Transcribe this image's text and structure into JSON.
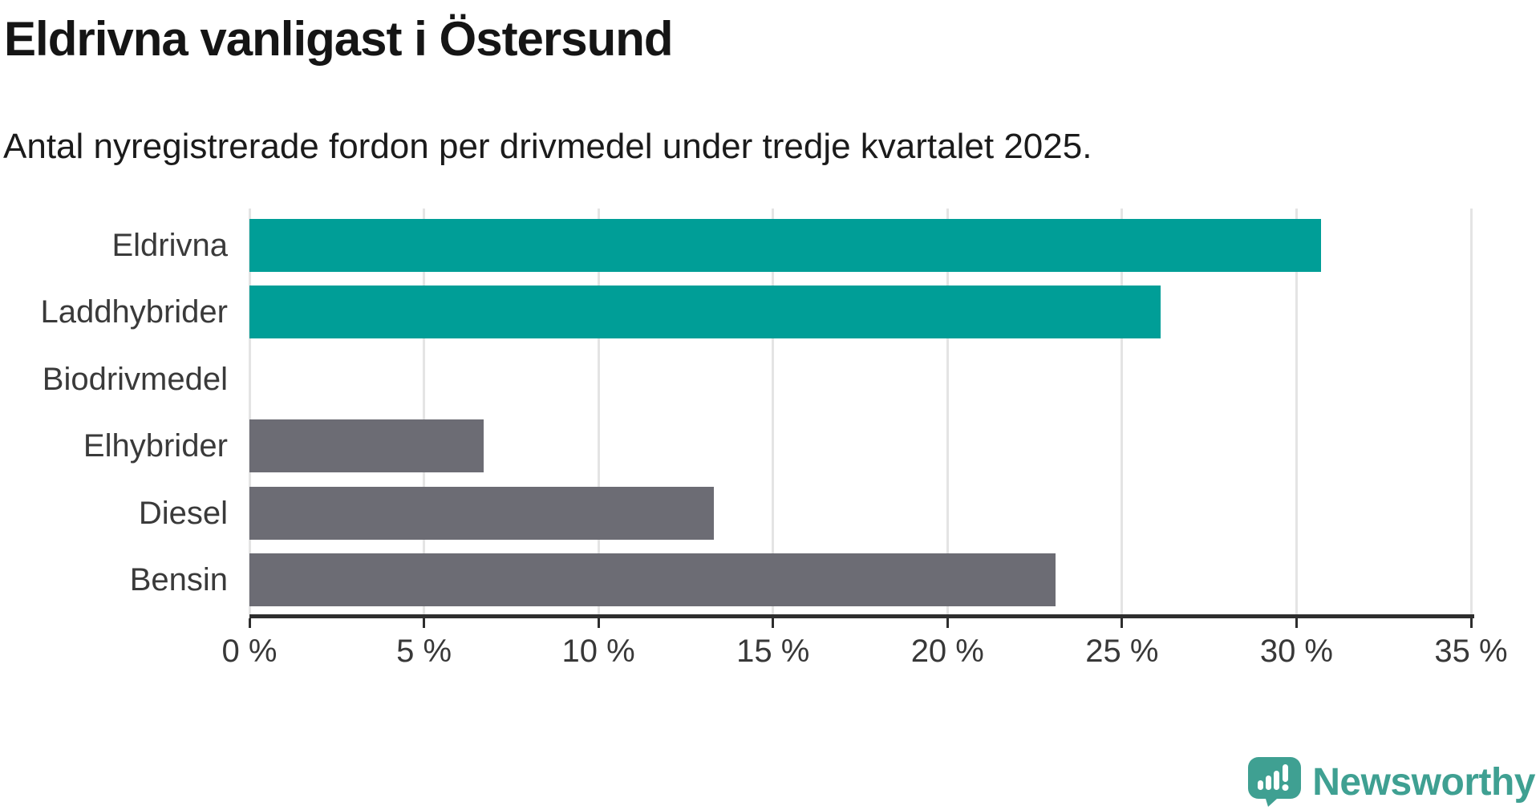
{
  "header": {
    "title": "Eldrivna vanligast i Östersund",
    "subtitle": "Antal nyregistrerade fordon per drivmedel under tredje kvartalet 2025."
  },
  "chart_data": {
    "type": "bar",
    "orientation": "horizontal",
    "title": "Eldrivna vanligast i Östersund",
    "subtitle": "Antal nyregistrerade fordon per drivmedel under tredje kvartalet 2025.",
    "categories": [
      "Eldrivna",
      "Laddhybrider",
      "Biodrivmedel",
      "Elhybrider",
      "Diesel",
      "Bensin"
    ],
    "values": [
      30.7,
      26.1,
      0,
      6.7,
      13.3,
      23.1
    ],
    "unit": "%",
    "bar_colors": [
      "#009E97",
      "#009E97",
      "#6C6C74",
      "#6C6C74",
      "#6C6C74",
      "#6C6C74"
    ],
    "xlim": [
      0,
      35
    ],
    "x_ticks": [
      {
        "value": 0,
        "label": "0 %"
      },
      {
        "value": 5,
        "label": "5 %"
      },
      {
        "value": 10,
        "label": "10 %"
      },
      {
        "value": 15,
        "label": "15 %"
      },
      {
        "value": 20,
        "label": "20 %"
      },
      {
        "value": 25,
        "label": "25 %"
      },
      {
        "value": 30,
        "label": "30 %"
      },
      {
        "value": 35,
        "label": "35 %"
      }
    ],
    "grid": "vertical",
    "legend": "none"
  },
  "colors": {
    "accent_teal": "#009E97",
    "neutral_gray": "#6C6C74",
    "axis": "#2E2E2E",
    "gridline": "#E4E4E4",
    "logo_teal": "#3FA092"
  },
  "branding": {
    "name": "Newsworthy",
    "icon": "newsworthy-chart-bubble"
  }
}
